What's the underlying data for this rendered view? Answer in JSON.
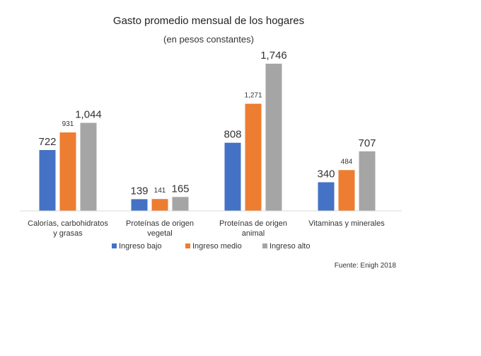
{
  "chart_data": {
    "type": "bar",
    "title": "Gasto promedio mensual de los hogares",
    "subtitle": "(en pesos constantes)",
    "categories": [
      [
        "Calorías, carbohidratos",
        "y grasas"
      ],
      [
        "Proteínas de origen",
        "vegetal"
      ],
      [
        "Proteínas de origen",
        "animal"
      ],
      [
        "Vitaminas y minerales"
      ]
    ],
    "series": [
      {
        "name": "Ingreso bajo",
        "color": "#4472C4",
        "values": [
          722,
          139,
          808,
          340
        ],
        "labels": [
          "722",
          "139",
          "808",
          "340"
        ]
      },
      {
        "name": "Ingreso medio",
        "color": "#ED7D31",
        "values": [
          931,
          141,
          1271,
          484
        ],
        "labels": [
          "931",
          "141",
          "1,271",
          "484"
        ]
      },
      {
        "name": "Ingreso alto",
        "color": "#A5A5A5",
        "values": [
          1044,
          165,
          1746,
          707
        ],
        "labels": [
          "1,044",
          "165",
          "1,746",
          "707"
        ]
      }
    ],
    "ylim": [
      0,
      1746
    ],
    "grid": false,
    "legend": "bottom"
  },
  "source": "Fuente: Enigh 2018"
}
